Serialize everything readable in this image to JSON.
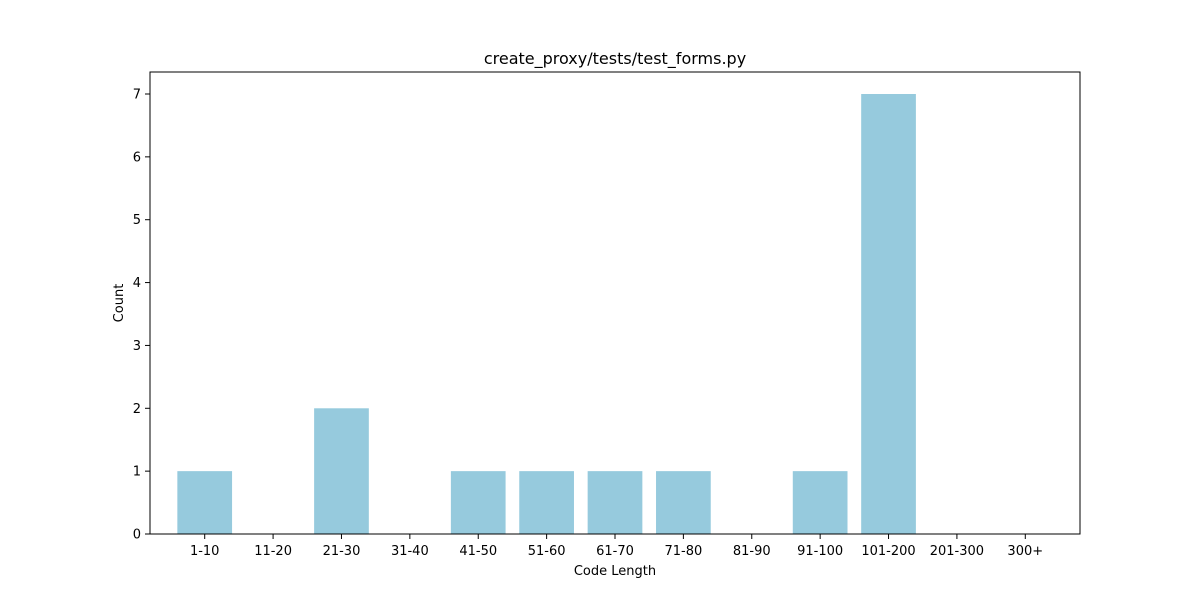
{
  "chart_data": {
    "type": "bar",
    "title": "create_proxy/tests/test_forms.py",
    "xlabel": "Code Length",
    "ylabel": "Count",
    "categories": [
      "1-10",
      "11-20",
      "21-30",
      "31-40",
      "41-50",
      "51-60",
      "61-70",
      "71-80",
      "81-90",
      "91-100",
      "101-200",
      "201-300",
      "300+"
    ],
    "values": [
      1,
      0,
      2,
      0,
      1,
      1,
      1,
      1,
      0,
      1,
      7,
      0,
      0
    ],
    "ylim": [
      0,
      7.35
    ],
    "yticks": [
      0,
      1,
      2,
      3,
      4,
      5,
      6,
      7
    ],
    "grid": false,
    "legend": "none",
    "bar_color": "#96cadd"
  }
}
